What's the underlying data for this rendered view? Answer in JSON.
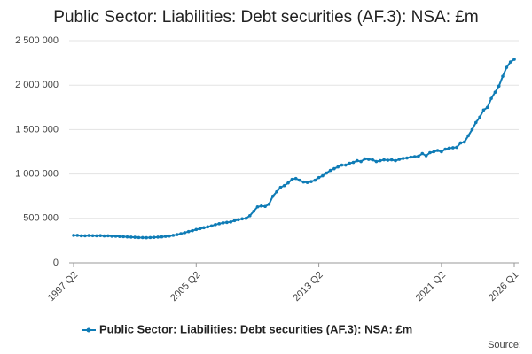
{
  "chart_data": {
    "type": "line",
    "title": "Public Sector: Liabilities: Debt securities (AF.3): NSA: £m",
    "source": "Source:",
    "categories": [
      "1997 Q2",
      null,
      null,
      null,
      null,
      null,
      null,
      null,
      null,
      null,
      null,
      null,
      null,
      null,
      null,
      null,
      null,
      null,
      null,
      null,
      null,
      null,
      null,
      null,
      null,
      null,
      null,
      null,
      null,
      null,
      null,
      null,
      "2005 Q2",
      null,
      null,
      null,
      null,
      null,
      null,
      null,
      null,
      null,
      null,
      null,
      null,
      null,
      null,
      null,
      null,
      null,
      null,
      null,
      null,
      null,
      null,
      null,
      null,
      null,
      null,
      null,
      null,
      null,
      null,
      null,
      "2013 Q2",
      null,
      null,
      null,
      null,
      null,
      null,
      null,
      null,
      null,
      null,
      null,
      null,
      null,
      null,
      null,
      null,
      null,
      null,
      null,
      null,
      null,
      null,
      null,
      null,
      null,
      null,
      null,
      null,
      null,
      null,
      null,
      "2021 Q2",
      null,
      null,
      null,
      null,
      null,
      null,
      null,
      null,
      null,
      null,
      null,
      null,
      null,
      null,
      null,
      null,
      null,
      null,
      "2026 Q1"
    ],
    "series": [
      {
        "name": "Public Sector: Liabilities: Debt securities (AF.3): NSA: £m",
        "color": "#0f7cb6",
        "values": [
          310000,
          310000,
          305000,
          305000,
          308000,
          306000,
          305000,
          307000,
          303000,
          305000,
          300000,
          300000,
          297000,
          295000,
          292000,
          290000,
          288000,
          285000,
          284000,
          283000,
          285000,
          287000,
          290000,
          293000,
          298000,
          302000,
          310000,
          318000,
          328000,
          340000,
          352000,
          362000,
          375000,
          385000,
          395000,
          405000,
          415000,
          430000,
          440000,
          450000,
          455000,
          460000,
          475000,
          485000,
          495000,
          500000,
          530000,
          580000,
          630000,
          640000,
          635000,
          660000,
          750000,
          800000,
          850000,
          870000,
          900000,
          940000,
          950000,
          930000,
          910000,
          905000,
          915000,
          930000,
          960000,
          980000,
          1010000,
          1040000,
          1060000,
          1080000,
          1100000,
          1100000,
          1120000,
          1130000,
          1150000,
          1140000,
          1170000,
          1165000,
          1160000,
          1140000,
          1150000,
          1160000,
          1155000,
          1160000,
          1150000,
          1165000,
          1175000,
          1180000,
          1190000,
          1195000,
          1200000,
          1230000,
          1205000,
          1240000,
          1250000,
          1265000,
          1250000,
          1280000,
          1290000,
          1295000,
          1300000,
          1350000,
          1360000,
          1430000,
          1500000,
          1580000,
          1640000,
          1720000,
          1750000,
          1850000,
          1920000,
          1990000,
          2100000,
          2200000,
          2260000,
          2290000
        ]
      }
    ],
    "ylim": [
      0,
      2500000
    ],
    "yticks": [
      0,
      {
        "value": 500000,
        "label": "500 000"
      },
      {
        "value": 1000000,
        "label": "1 000 000"
      },
      {
        "value": 1500000,
        "label": "1 500 000"
      },
      {
        "value": 2000000,
        "label": "2 000 000"
      },
      {
        "value": 2500000,
        "label": "2 500 000"
      }
    ],
    "grid": true
  }
}
